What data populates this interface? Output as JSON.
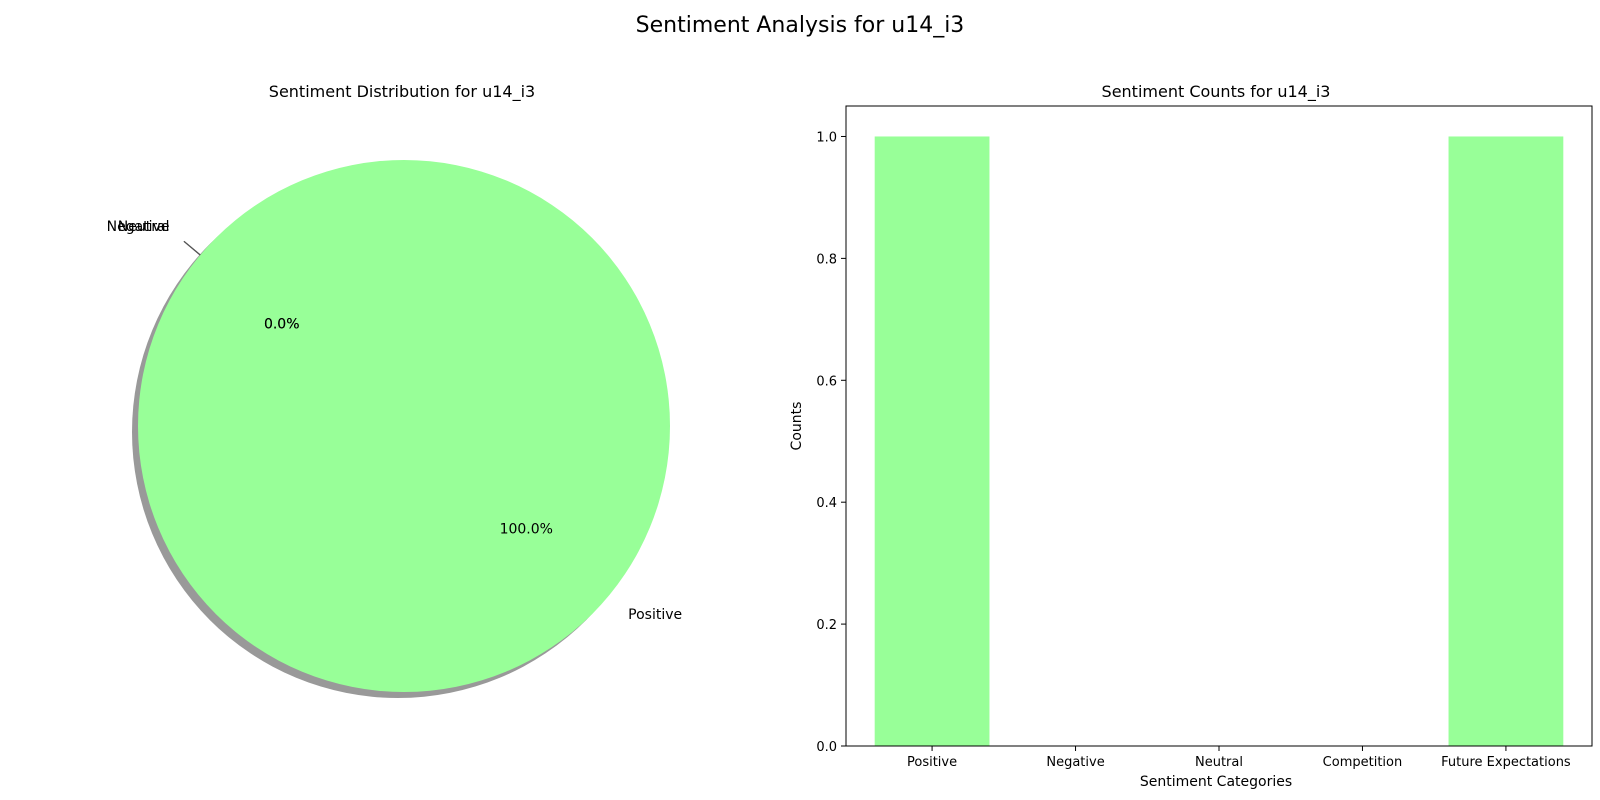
{
  "figure": {
    "suptitle": "Sentiment Analysis for u14_i3"
  },
  "chart_data": [
    {
      "type": "pie",
      "title": "Sentiment Distribution for u14_i3",
      "labels": [
        "Positive",
        "Negative",
        "Neutral"
      ],
      "values": [
        1,
        0,
        0
      ],
      "autopct_labels": [
        "100.0%",
        "0.0%",
        "0.0%"
      ],
      "colors": [
        "#98ff98",
        "#ff9999",
        "#66b3ff"
      ],
      "shadow": true
    },
    {
      "type": "bar",
      "title": "Sentiment Counts for u14_i3",
      "xlabel": "Sentiment Categories",
      "ylabel": "Counts",
      "categories": [
        "Positive",
        "Negative",
        "Neutral",
        "Competition",
        "Future Expectations"
      ],
      "values": [
        1,
        0,
        0,
        0,
        1
      ],
      "ylim": [
        0,
        1.05
      ],
      "yticks": [
        "0.0",
        "0.2",
        "0.4",
        "0.6",
        "0.8",
        "1.0"
      ],
      "bar_color": "#98ff98",
      "grid": false,
      "legend": "none"
    }
  ]
}
